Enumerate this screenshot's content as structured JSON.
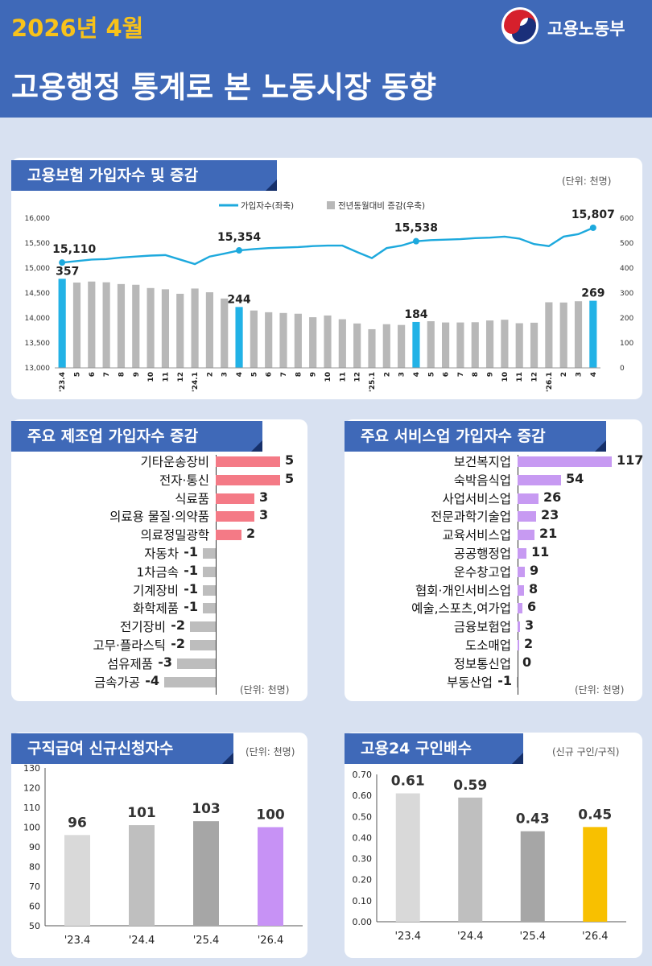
{
  "header": {
    "date": "2026년 4월",
    "title": "고용행정 통계로 본 노동시장 동향",
    "ministry": "고용노동부",
    "logo_icon": "taegeuk-logo-icon"
  },
  "colors": {
    "header_bg": "#3f69b8",
    "date": "#f8c21a",
    "line": "#1da9dd",
    "bar_grey": "#b8b8b8",
    "bar_highlight": "#22b2e6",
    "manufacturing_pos": "#f47a86",
    "services_pos": "#c79af2",
    "neg": "#bdbdbd",
    "highlight_purple": "#c792f5",
    "highlight_yellow": "#f8c000"
  },
  "chart_data": [
    {
      "type": "line",
      "title": "고용보험 가입자수 및 증감",
      "unit": "(단위: 천명)",
      "legend": [
        "가입자수(좌축)",
        "전년동월대비 증감(우축)"
      ],
      "legend_placement": "top-center",
      "categories": [
        "'23.4",
        "5",
        "6",
        "7",
        "8",
        "9",
        "10",
        "11",
        "12",
        "'24.1",
        "2",
        "3",
        "4",
        "5",
        "6",
        "7",
        "8",
        "9",
        "10",
        "11",
        "12",
        "'25.1",
        "2",
        "3",
        "4",
        "5",
        "6",
        "7",
        "8",
        "9",
        "10",
        "11",
        "12",
        "'26.1",
        "2",
        "3",
        "4"
      ],
      "y_left": {
        "min": 13000,
        "max": 16000,
        "ticks": [
          "13,000",
          "13,500",
          "14,000",
          "14,500",
          "15,000",
          "15,500",
          "16,000"
        ]
      },
      "y_right": {
        "min": 0,
        "max": 600,
        "ticks": [
          "0",
          "100",
          "200",
          "300",
          "400",
          "500",
          "600"
        ]
      },
      "series": [
        {
          "name": "가입자수(좌축)",
          "type": "line",
          "axis": "left",
          "values": [
            15110,
            15140,
            15170,
            15180,
            15210,
            15230,
            15250,
            15260,
            15170,
            15080,
            15230,
            15290,
            15354,
            15380,
            15400,
            15410,
            15420,
            15440,
            15450,
            15450,
            15320,
            15200,
            15400,
            15450,
            15538,
            15560,
            15570,
            15580,
            15600,
            15610,
            15630,
            15590,
            15480,
            15440,
            15630,
            15680,
            15807
          ]
        },
        {
          "name": "전년동월대비 증감(우축)",
          "type": "bar",
          "axis": "right",
          "values": [
            357,
            342,
            346,
            343,
            336,
            333,
            320,
            315,
            297,
            318,
            303,
            278,
            244,
            230,
            223,
            220,
            217,
            203,
            210,
            195,
            178,
            155,
            175,
            172,
            184,
            187,
            182,
            182,
            183,
            190,
            193,
            179,
            181,
            263,
            262,
            267,
            269
          ]
        }
      ],
      "labels": [
        {
          "x": "'23.4",
          "line": "15,110",
          "bar": "357"
        },
        {
          "x": "4",
          "line": "15,354",
          "bar": "244"
        },
        {
          "x": "4",
          "line": "15,538",
          "bar": "184"
        },
        {
          "x": "4",
          "line": "15,807",
          "bar": "269"
        }
      ]
    },
    {
      "type": "bar",
      "orientation": "horizontal",
      "title": "주요 제조업 가입자수 증감",
      "unit": "(단위: 천명)",
      "categories": [
        "기타운송장비",
        "전자·통신",
        "식료품",
        "의료용 물질·의약품",
        "의료정밀광학",
        "자동차",
        "1차금속",
        "기계장비",
        "화학제품",
        "전기장비",
        "고무·플라스틱",
        "섬유제품",
        "금속가공"
      ],
      "values": [
        5,
        5,
        3,
        3,
        2,
        -1,
        -1,
        -1,
        -1,
        -2,
        -2,
        -3,
        -4
      ],
      "value_labels": [
        "5",
        "5",
        "3",
        "3",
        "2",
        "-1",
        "-1",
        "-1",
        "-1",
        "-2",
        "-2",
        "-3",
        "-4"
      ]
    },
    {
      "type": "bar",
      "orientation": "horizontal",
      "title": "주요 서비스업 가입자수 증감",
      "unit": "(단위: 천명)",
      "categories": [
        "보건복지업",
        "숙박음식업",
        "사업서비스업",
        "전문과학기술업",
        "교육서비스업",
        "공공행정업",
        "운수창고업",
        "협회·개인서비스업",
        "예술,스포츠,여가업",
        "금융보험업",
        "도소매업",
        "정보통신업",
        "부동산업"
      ],
      "values": [
        117,
        54,
        26,
        23,
        21,
        11,
        9,
        8,
        6,
        3,
        2,
        0,
        -1
      ],
      "value_labels": [
        "117",
        "54",
        "26",
        "23",
        "21",
        "11",
        "9",
        "8",
        "6",
        "3",
        "2",
        "0",
        "-1"
      ]
    },
    {
      "type": "bar",
      "title": "구직급여 신규신청자수",
      "unit": "(단위: 천명)",
      "categories": [
        "'23.4",
        "'24.4",
        "'25.4",
        "'26.4"
      ],
      "values": [
        96,
        101,
        103,
        100
      ],
      "value_labels": [
        "96",
        "101",
        "103",
        "100"
      ],
      "ylim": [
        50,
        130
      ],
      "ticks": [
        "50",
        "60",
        "70",
        "80",
        "90",
        "100",
        "110",
        "120",
        "130"
      ]
    },
    {
      "type": "bar",
      "title": "고용24 구인배수",
      "unit": "(신규 구인/구직)",
      "categories": [
        "'23.4",
        "'24.4",
        "'25.4",
        "'26.4"
      ],
      "values": [
        0.61,
        0.59,
        0.43,
        0.45
      ],
      "value_labels": [
        "0.61",
        "0.59",
        "0.43",
        "0.45"
      ],
      "ylim": [
        0,
        0.7
      ],
      "ticks": [
        "0.00",
        "0.10",
        "0.20",
        "0.30",
        "0.40",
        "0.50",
        "0.60",
        "0.70"
      ]
    }
  ]
}
